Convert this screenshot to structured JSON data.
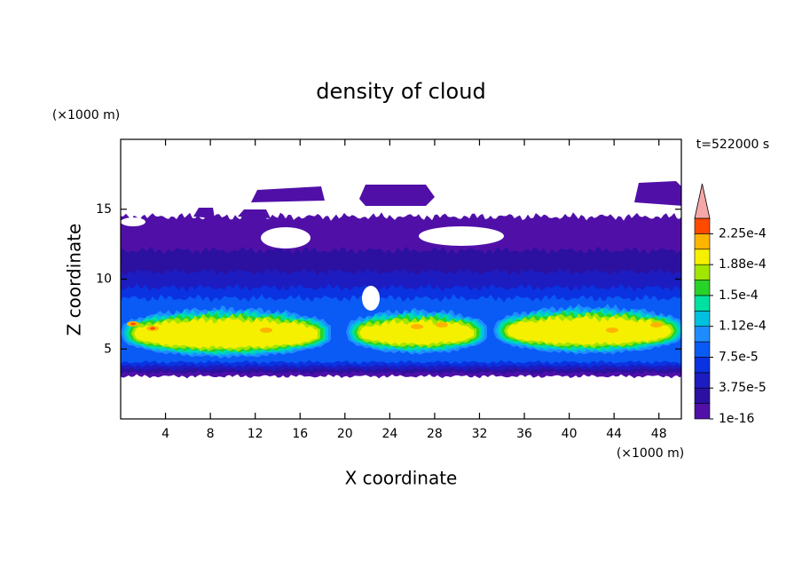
{
  "chart_data": {
    "type": "contour",
    "title": "density of cloud",
    "time_label": "t=522000 s",
    "x_label": "X coordinate",
    "y_label": "Z coordinate",
    "x_unit": "(×1000 m)",
    "y_unit": "(×1000 m)",
    "xlim": [
      0,
      50
    ],
    "ylim": [
      0,
      20
    ],
    "xticks": [
      4,
      8,
      12,
      16,
      20,
      24,
      28,
      32,
      36,
      40,
      44,
      48
    ],
    "yticks": [
      5,
      10,
      15
    ],
    "colorbar": {
      "levels": [
        1e-16,
        1.875e-05,
        3.75e-05,
        5.625e-05,
        7.5e-05,
        9.375e-05,
        0.0001125,
        0.00013125,
        0.00015,
        0.00016875,
        0.0001875,
        0.00020625,
        0.000225,
        0.00024375
      ],
      "colors": [
        "#5010a8",
        "#2c10a0",
        "#1c1cc0",
        "#0a32e0",
        "#0a5af5",
        "#1e8cff",
        "#00c0e0",
        "#00e0a0",
        "#28d228",
        "#a0e600",
        "#f5f000",
        "#ffb400",
        "#ff4a00"
      ],
      "over_color": "#f4a8a8",
      "ticks": [
        1e-16,
        {
          "value": 3.75e-05,
          "label": "3.75e-5"
        },
        {
          "value": 7.5e-05,
          "label": "7.5e-5"
        },
        {
          "value": 0.0001125,
          "label": "1.12e-4"
        },
        {
          "value": 0.00015,
          "label": "1.5e-4"
        },
        {
          "value": 0.0001875,
          "label": "1.88e-4"
        },
        {
          "value": 0.000225,
          "label": "2.25e-4"
        }
      ]
    }
  }
}
